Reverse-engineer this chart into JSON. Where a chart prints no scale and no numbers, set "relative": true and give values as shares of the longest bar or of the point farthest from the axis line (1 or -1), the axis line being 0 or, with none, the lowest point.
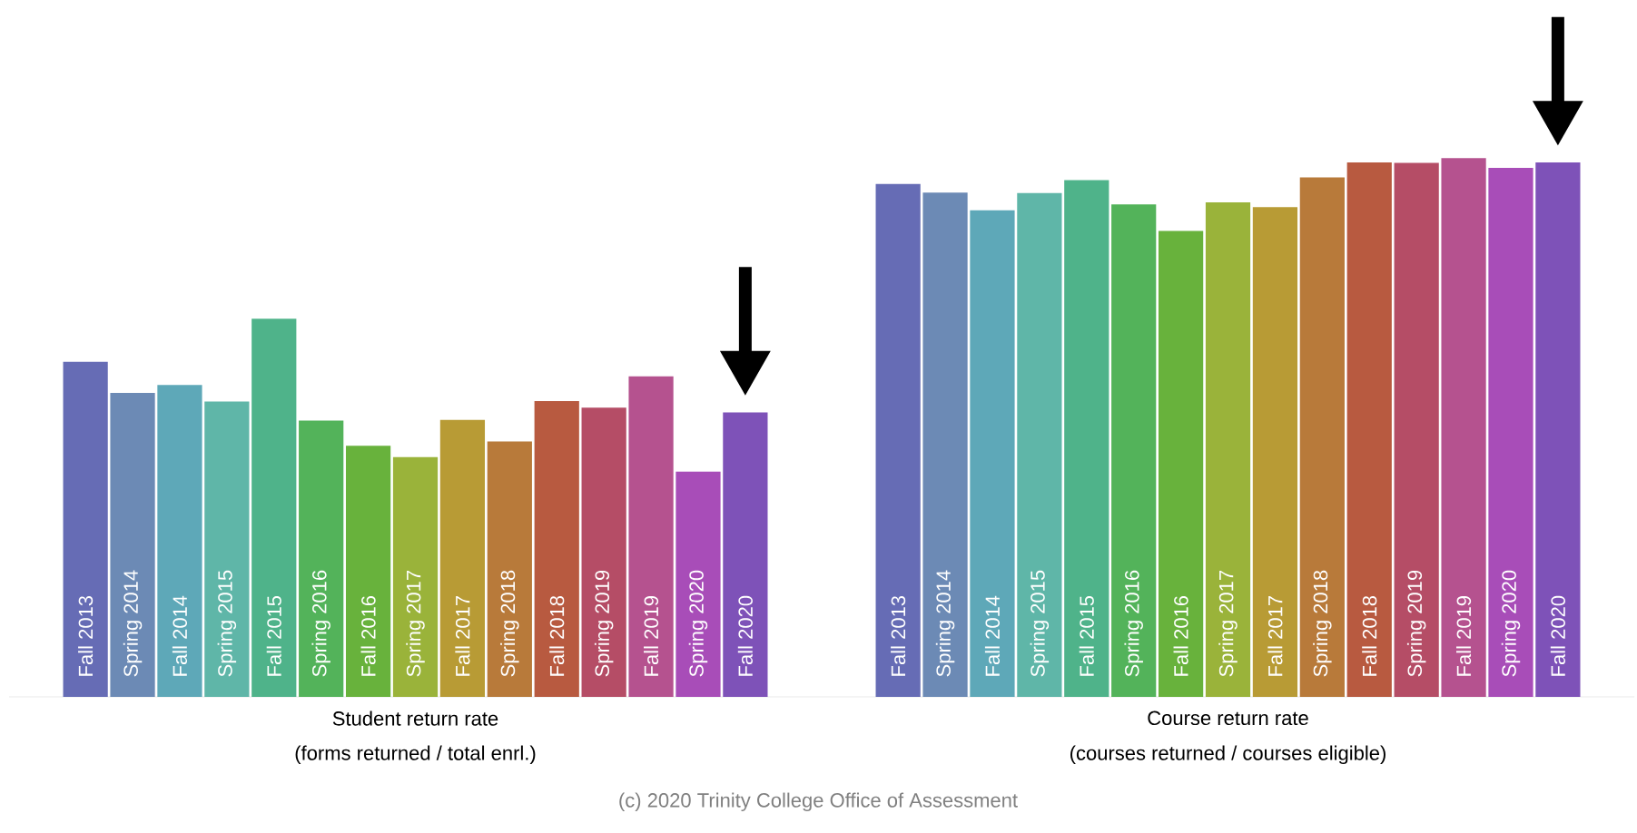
{
  "chart_data": {
    "type": "bar",
    "relative": true,
    "categories": [
      "Student return rate",
      "Course return rate"
    ],
    "series": [
      {
        "name": "Fall 2013",
        "color": "#666cb5",
        "values": [
          0.622,
          0.952
        ]
      },
      {
        "name": "Spring 2014",
        "color": "#6c8ab5",
        "values": [
          0.564,
          0.936
        ]
      },
      {
        "name": "Fall 2014",
        "color": "#5ea8b8",
        "values": [
          0.579,
          0.903
        ]
      },
      {
        "name": "Spring 2015",
        "color": "#5fb6a8",
        "values": [
          0.548,
          0.935
        ]
      },
      {
        "name": "Fall 2015",
        "color": "#4fb38a",
        "values": [
          0.702,
          0.959
        ]
      },
      {
        "name": "Spring 2016",
        "color": "#53b35a",
        "values": [
          0.513,
          0.914
        ]
      },
      {
        "name": "Fall 2016",
        "color": "#68b23c",
        "values": [
          0.466,
          0.865
        ]
      },
      {
        "name": "Spring 2017",
        "color": "#9ab33a",
        "values": [
          0.445,
          0.918
        ]
      },
      {
        "name": "Fall 2017",
        "color": "#b89b35",
        "values": [
          0.514,
          0.909
        ]
      },
      {
        "name": "Spring 2018",
        "color": "#b87a3a",
        "values": [
          0.474,
          0.964
        ]
      },
      {
        "name": "Fall 2018",
        "color": "#b85a40",
        "values": [
          0.549,
          0.992
        ]
      },
      {
        "name": "Spring 2019",
        "color": "#b54d66",
        "values": [
          0.537,
          0.991
        ]
      },
      {
        "name": "Fall 2019",
        "color": "#b5528f",
        "values": [
          0.595,
          1.0
        ]
      },
      {
        "name": "Spring 2020",
        "color": "#a84db8",
        "values": [
          0.418,
          0.982
        ]
      },
      {
        "name": "Fall 2020",
        "color": "#7e52b8",
        "values": [
          0.528,
          0.992
        ]
      }
    ],
    "annotations": [
      "(forms returned / total enrl.)",
      "(courses returned / courses eligible)",
      "(c) 2020 Trinity College Office of Assessment"
    ]
  }
}
